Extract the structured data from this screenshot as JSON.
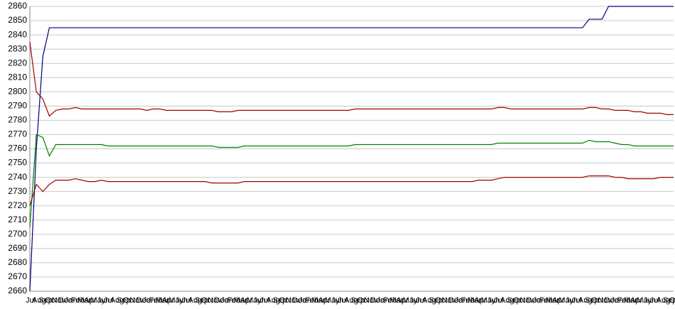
{
  "chart_data": {
    "type": "line",
    "categories": [
      "Jul",
      "Aug",
      "Sep",
      "Oct",
      "Nov",
      "Dec",
      "Jan",
      "Feb",
      "Mar",
      "Apr",
      "May",
      "Jun",
      "Jul",
      "Aug",
      "Sep",
      "Oct",
      "Nov",
      "Dec",
      "Jan",
      "Feb",
      "Mar",
      "Apr",
      "May",
      "Jun",
      "Jul",
      "Aug",
      "Sep",
      "Oct",
      "Nov",
      "Dec",
      "Jan",
      "Feb",
      "Mar",
      "Apr",
      "May",
      "Jun",
      "Jul",
      "Aug",
      "Sep",
      "Oct",
      "Nov",
      "Dec",
      "Jan",
      "Feb",
      "Mar",
      "Apr",
      "May",
      "Jun",
      "Jul",
      "Aug",
      "Sep",
      "Oct",
      "Nov",
      "Dec",
      "Jan",
      "Feb",
      "Mar",
      "Apr",
      "May",
      "Jun",
      "Jul",
      "Aug",
      "Sep",
      "Oct",
      "Nov",
      "Dec",
      "Jan",
      "Feb",
      "Mar",
      "Apr",
      "May",
      "Jun",
      "Jul",
      "Aug",
      "Sep",
      "Oct",
      "Nov",
      "Dec",
      "Jan",
      "Feb",
      "Mar",
      "Apr",
      "May",
      "Jun",
      "Jul",
      "Aug",
      "Sep",
      "Oct",
      "Nov",
      "Dec",
      "Jan",
      "Feb",
      "Mar",
      "Apr",
      "May",
      "Jun",
      "Jul",
      "Aug",
      "Sep",
      "Oct"
    ],
    "series": [
      {
        "color": "#000080",
        "values": [
          2660,
          2760,
          2825,
          2845,
          2845,
          2845,
          2845,
          2845,
          2845,
          2845,
          2845,
          2845,
          2845,
          2845,
          2845,
          2845,
          2845,
          2845,
          2845,
          2845,
          2845,
          2845,
          2845,
          2845,
          2845,
          2845,
          2845,
          2845,
          2845,
          2845,
          2845,
          2845,
          2845,
          2845,
          2845,
          2845,
          2845,
          2845,
          2845,
          2845,
          2845,
          2845,
          2845,
          2845,
          2845,
          2845,
          2845,
          2845,
          2845,
          2845,
          2845,
          2845,
          2845,
          2845,
          2845,
          2845,
          2845,
          2845,
          2845,
          2845,
          2845,
          2845,
          2845,
          2845,
          2845,
          2845,
          2845,
          2845,
          2845,
          2845,
          2845,
          2845,
          2845,
          2845,
          2845,
          2845,
          2845,
          2845,
          2845,
          2845,
          2845,
          2845,
          2845,
          2845,
          2845,
          2845,
          2851,
          2851,
          2851,
          2860,
          2860,
          2860,
          2860,
          2860,
          2860,
          2860,
          2860,
          2860,
          2860,
          2860
        ]
      },
      {
        "color": "#a00000",
        "values": [
          2835,
          2800,
          2795,
          2783,
          2787,
          2788,
          2788,
          2789,
          2788,
          2788,
          2788,
          2788,
          2788,
          2788,
          2788,
          2788,
          2788,
          2788,
          2787,
          2788,
          2788,
          2787,
          2787,
          2787,
          2787,
          2787,
          2787,
          2787,
          2787,
          2786,
          2786,
          2786,
          2787,
          2787,
          2787,
          2787,
          2787,
          2787,
          2787,
          2787,
          2787,
          2787,
          2787,
          2787,
          2787,
          2787,
          2787,
          2787,
          2787,
          2787,
          2788,
          2788,
          2788,
          2788,
          2788,
          2788,
          2788,
          2788,
          2788,
          2788,
          2788,
          2788,
          2788,
          2788,
          2788,
          2788,
          2788,
          2788,
          2788,
          2788,
          2788,
          2788,
          2789,
          2789,
          2788,
          2788,
          2788,
          2788,
          2788,
          2788,
          2788,
          2788,
          2788,
          2788,
          2788,
          2788,
          2789,
          2789,
          2788,
          2788,
          2787,
          2787,
          2787,
          2786,
          2786,
          2785,
          2785,
          2785,
          2784,
          2784
        ]
      },
      {
        "color": "#008000",
        "values": [
          2705,
          2770,
          2768,
          2755,
          2763,
          2763,
          2763,
          2763,
          2763,
          2763,
          2763,
          2763,
          2762,
          2762,
          2762,
          2762,
          2762,
          2762,
          2762,
          2762,
          2762,
          2762,
          2762,
          2762,
          2762,
          2762,
          2762,
          2762,
          2762,
          2761,
          2761,
          2761,
          2761,
          2762,
          2762,
          2762,
          2762,
          2762,
          2762,
          2762,
          2762,
          2762,
          2762,
          2762,
          2762,
          2762,
          2762,
          2762,
          2762,
          2762,
          2763,
          2763,
          2763,
          2763,
          2763,
          2763,
          2763,
          2763,
          2763,
          2763,
          2763,
          2763,
          2763,
          2763,
          2763,
          2763,
          2763,
          2763,
          2763,
          2763,
          2763,
          2763,
          2764,
          2764,
          2764,
          2764,
          2764,
          2764,
          2764,
          2764,
          2764,
          2764,
          2764,
          2764,
          2764,
          2764,
          2766,
          2765,
          2765,
          2765,
          2764,
          2763,
          2763,
          2762,
          2762,
          2762,
          2762,
          2762,
          2762,
          2762
        ]
      },
      {
        "color": "#a00000",
        "values": [
          2720,
          2735,
          2730,
          2735,
          2738,
          2738,
          2738,
          2739,
          2738,
          2737,
          2737,
          2738,
          2737,
          2737,
          2737,
          2737,
          2737,
          2737,
          2737,
          2737,
          2737,
          2737,
          2737,
          2737,
          2737,
          2737,
          2737,
          2737,
          2736,
          2736,
          2736,
          2736,
          2736,
          2737,
          2737,
          2737,
          2737,
          2737,
          2737,
          2737,
          2737,
          2737,
          2737,
          2737,
          2737,
          2737,
          2737,
          2737,
          2737,
          2737,
          2737,
          2737,
          2737,
          2737,
          2737,
          2737,
          2737,
          2737,
          2737,
          2737,
          2737,
          2737,
          2737,
          2737,
          2737,
          2737,
          2737,
          2737,
          2737,
          2738,
          2738,
          2738,
          2739,
          2740,
          2740,
          2740,
          2740,
          2740,
          2740,
          2740,
          2740,
          2740,
          2740,
          2740,
          2740,
          2740,
          2741,
          2741,
          2741,
          2741,
          2740,
          2740,
          2739,
          2739,
          2739,
          2739,
          2739,
          2740,
          2740,
          2740
        ]
      }
    ],
    "ylim": [
      2660,
      2860
    ],
    "yticks": [
      2660,
      2670,
      2680,
      2690,
      2700,
      2710,
      2720,
      2730,
      2740,
      2750,
      2760,
      2770,
      2780,
      2790,
      2800,
      2810,
      2820,
      2830,
      2840,
      2850,
      2860
    ],
    "grid": true
  }
}
